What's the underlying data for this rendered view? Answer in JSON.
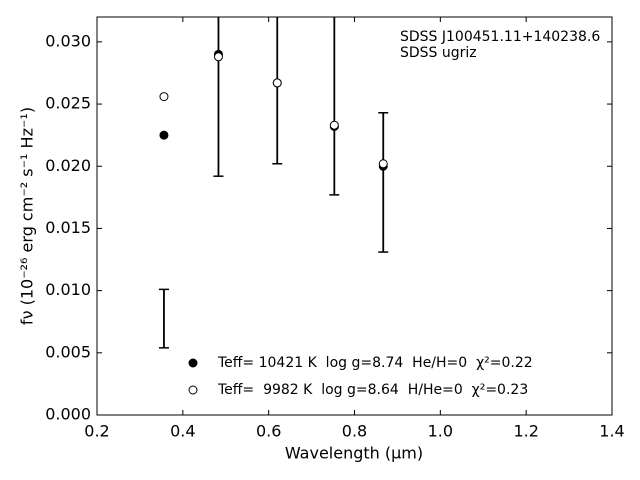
{
  "chart_data": {
    "type": "scatter",
    "xlabel": "Wavelength (μm)",
    "ylabel": "fν (10⁻²⁶ erg cm⁻² s⁻¹ Hz⁻¹)",
    "annotations": [
      "SDSS J100451.11+140238.6",
      "SDSS ugriz"
    ],
    "xlim": [
      0.2,
      1.4
    ],
    "ylim": [
      0,
      0.032
    ],
    "xticks": [
      0.2,
      0.4,
      0.6,
      0.8,
      {
        "value": 1.0,
        "label": "1.0"
      },
      1.2,
      1.4
    ],
    "yticks": [
      {
        "value": 0,
        "label": "0.000"
      },
      {
        "value": 0.005,
        "label": "0.005"
      },
      {
        "value": 0.01,
        "label": "0.010"
      },
      {
        "value": 0.015,
        "label": "0.015"
      },
      {
        "value": 0.02,
        "label": "0.020"
      },
      {
        "value": 0.025,
        "label": "0.025"
      },
      {
        "value": 0.03,
        "label": "0.030"
      }
    ],
    "legend": "lower center",
    "observed": {
      "color": "#000000",
      "x": [
        0.356,
        0.483,
        0.62,
        0.753,
        0.867
      ],
      "values": [
        0.00775,
        0.029,
        0.0267,
        0.025,
        0.0187
      ],
      "errors": [
        0.00235,
        0.0098,
        0.0065,
        0.0073,
        0.0056
      ]
    },
    "series": [
      {
        "name": "Teff= 10421 K  log g=8.74  He/H=0  χ²=0.22",
        "color": "#000000",
        "filled": true,
        "x": [
          0.356,
          0.483,
          0.62,
          0.753,
          0.867
        ],
        "values": [
          0.0225,
          0.029,
          0.0267,
          0.0232,
          0.02
        ]
      },
      {
        "name": "Teff=  9982 K  log g=8.64  H/He=0  χ²=0.23",
        "color": "#000000",
        "filled": false,
        "x": [
          0.356,
          0.483,
          0.62,
          0.753,
          0.867
        ],
        "values": [
          0.0256,
          0.0288,
          0.0267,
          0.0233,
          0.0202
        ]
      }
    ]
  }
}
